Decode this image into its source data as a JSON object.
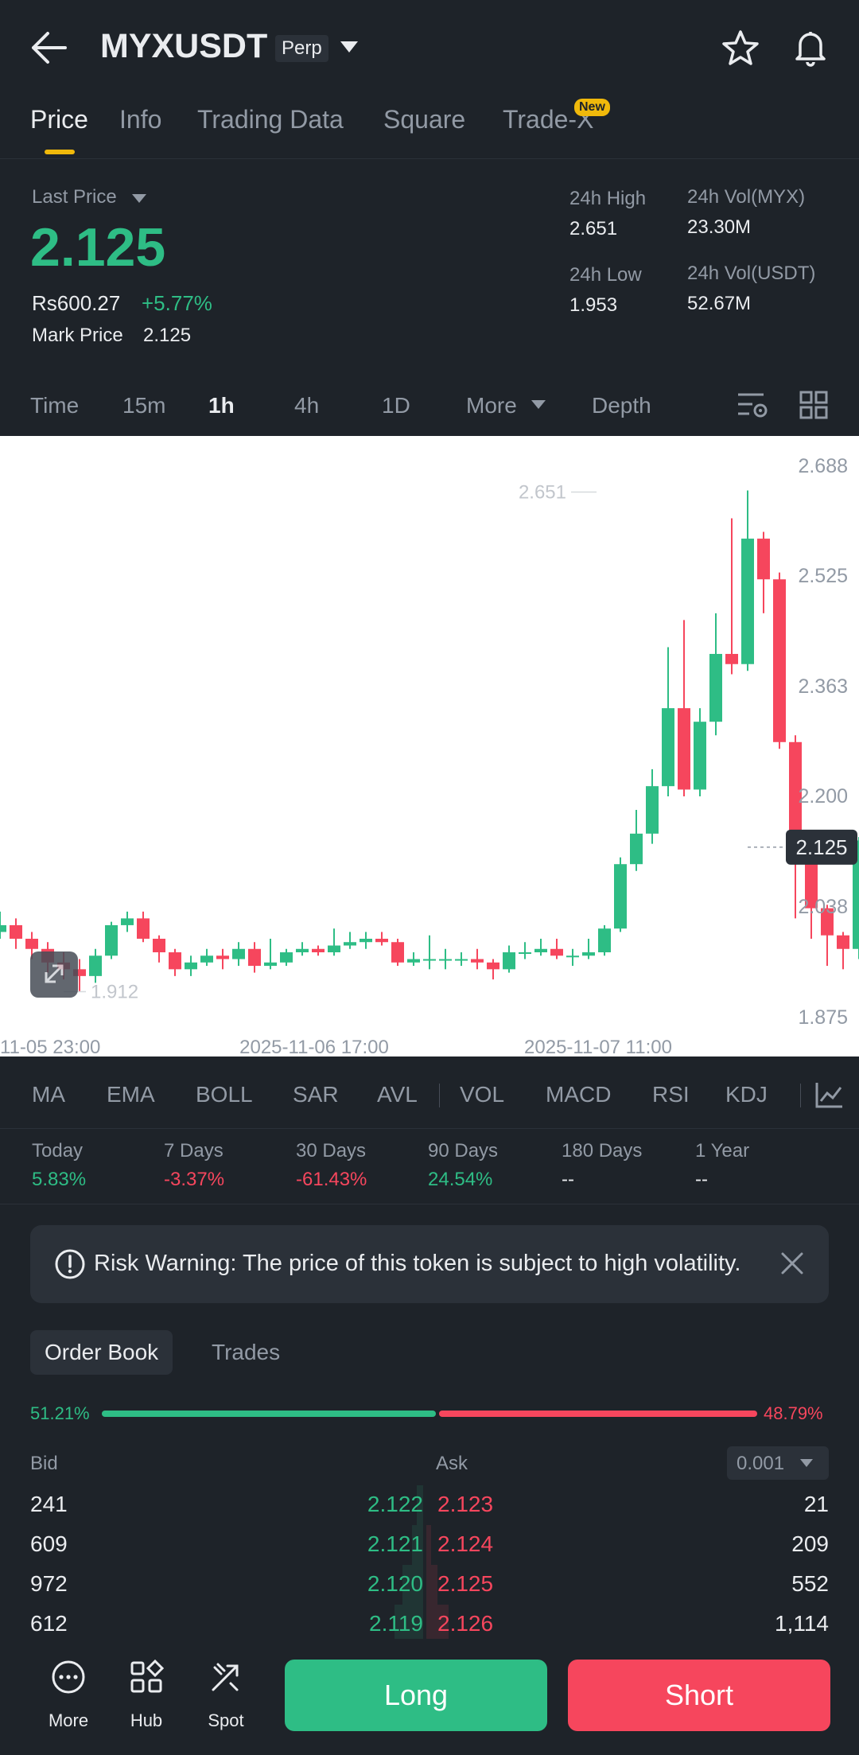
{
  "header": {
    "symbol": "MYXUSDT",
    "contract_type": "Perp",
    "icons": [
      "back-arrow-icon",
      "star-icon",
      "bell-icon"
    ]
  },
  "tabs": [
    {
      "label": "Price",
      "active": true
    },
    {
      "label": "Info",
      "active": false
    },
    {
      "label": "Trading Data",
      "active": false
    },
    {
      "label": "Square",
      "active": false
    },
    {
      "label": "Trade-X",
      "active": false,
      "badge": "New"
    }
  ],
  "ticker": {
    "last_price_label": "Last Price",
    "last_price": "2.125",
    "inr_price": "Rs600.27",
    "change_pct": "+5.77%",
    "mark_price_label": "Mark Price",
    "mark_price": "2.125",
    "high_label": "24h High",
    "high": "2.651",
    "low_label": "24h Low",
    "low": "1.953",
    "vol_base_label": "24h Vol(MYX)",
    "vol_base": "23.30M",
    "vol_quote_label": "24h Vol(USDT)",
    "vol_quote": "52.67M"
  },
  "intervals": [
    {
      "label": "Time",
      "active": false
    },
    {
      "label": "15m",
      "active": false
    },
    {
      "label": "1h",
      "active": true
    },
    {
      "label": "4h",
      "active": false
    },
    {
      "label": "1D",
      "active": false
    },
    {
      "label": "More",
      "active": false
    },
    {
      "label": "Depth",
      "active": false
    }
  ],
  "chart_data": {
    "type": "candlestick",
    "y_ticks": [
      "2.688",
      "2.525",
      "2.363",
      "2.200",
      "2.038",
      "1.875"
    ],
    "ylim": [
      1.875,
      2.688
    ],
    "x_ticks": [
      "11-05 23:00",
      "2025-11-06 17:00",
      "2025-11-07 11:00"
    ],
    "current_price_label": "2.125",
    "max_label": "2.651",
    "min_label": "1.912",
    "candles": [
      [
        2.0,
        2.01,
        2.03,
        1.99
      ],
      [
        2.01,
        1.99,
        2.02,
        1.975
      ],
      [
        1.99,
        1.975,
        2.0,
        1.96
      ],
      [
        1.975,
        1.955,
        1.985,
        1.94
      ],
      [
        1.955,
        1.945,
        1.97,
        1.93
      ],
      [
        1.945,
        1.935,
        1.96,
        1.912
      ],
      [
        1.935,
        1.965,
        1.975,
        1.925
      ],
      [
        1.965,
        2.01,
        2.015,
        1.96
      ],
      [
        2.01,
        2.02,
        2.03,
        2.0
      ],
      [
        2.02,
        1.99,
        2.03,
        1.985
      ],
      [
        1.99,
        1.97,
        1.995,
        1.955
      ],
      [
        1.97,
        1.945,
        1.975,
        1.935
      ],
      [
        1.945,
        1.955,
        1.965,
        1.935
      ],
      [
        1.955,
        1.965,
        1.975,
        1.95
      ],
      [
        1.965,
        1.96,
        1.975,
        1.945
      ],
      [
        1.96,
        1.975,
        1.985,
        1.95
      ],
      [
        1.975,
        1.95,
        1.985,
        1.94
      ],
      [
        1.95,
        1.955,
        1.99,
        1.945
      ],
      [
        1.955,
        1.97,
        1.975,
        1.95
      ],
      [
        1.97,
        1.975,
        1.985,
        1.965
      ],
      [
        1.975,
        1.97,
        1.98,
        1.965
      ],
      [
        1.97,
        1.98,
        2.005,
        1.965
      ],
      [
        1.98,
        1.985,
        2.0,
        1.975
      ],
      [
        1.985,
        1.99,
        2.0,
        1.975
      ],
      [
        1.99,
        1.985,
        2.0,
        1.98
      ],
      [
        1.985,
        1.955,
        1.99,
        1.95
      ],
      [
        1.955,
        1.96,
        1.97,
        1.95
      ],
      [
        1.96,
        1.96,
        1.995,
        1.945
      ],
      [
        1.96,
        1.96,
        1.975,
        1.945
      ],
      [
        1.96,
        1.96,
        1.97,
        1.95
      ],
      [
        1.96,
        1.955,
        1.975,
        1.945
      ],
      [
        1.955,
        1.945,
        1.96,
        1.93
      ],
      [
        1.945,
        1.97,
        1.98,
        1.94
      ],
      [
        1.97,
        1.97,
        1.985,
        1.96
      ],
      [
        1.97,
        1.975,
        1.99,
        1.965
      ],
      [
        1.975,
        1.965,
        1.99,
        1.96
      ],
      [
        1.965,
        1.965,
        1.975,
        1.95
      ],
      [
        1.965,
        1.97,
        1.99,
        1.96
      ],
      [
        1.97,
        2.005,
        2.01,
        1.965
      ],
      [
        2.005,
        2.1,
        2.11,
        2.0
      ],
      [
        2.1,
        2.145,
        2.18,
        2.09
      ],
      [
        2.145,
        2.215,
        2.24,
        2.13
      ],
      [
        2.215,
        2.33,
        2.42,
        2.2
      ],
      [
        2.33,
        2.21,
        2.46,
        2.2
      ],
      [
        2.21,
        2.31,
        2.33,
        2.2
      ],
      [
        2.31,
        2.41,
        2.47,
        2.29
      ],
      [
        2.41,
        2.395,
        2.61,
        2.38
      ],
      [
        2.395,
        2.58,
        2.651,
        2.385
      ],
      [
        2.58,
        2.52,
        2.59,
        2.47
      ],
      [
        2.52,
        2.28,
        2.53,
        2.27
      ],
      [
        2.28,
        2.1,
        2.29,
        2.02
      ],
      [
        2.1,
        2.035,
        2.11,
        1.99
      ],
      [
        2.035,
        1.995,
        2.04,
        1.95
      ],
      [
        1.995,
        1.975,
        2.0,
        1.945
      ],
      [
        1.975,
        2.135,
        2.14,
        1.96
      ],
      [
        2.135,
        2.105,
        2.14,
        1.98
      ],
      [
        2.105,
        2.125,
        2.155,
        2.08
      ]
    ]
  },
  "indicators": [
    "MA",
    "EMA",
    "BOLL",
    "SAR",
    "AVL",
    "VOL",
    "MACD",
    "RSI",
    "KDJ"
  ],
  "performance": [
    {
      "label": "Today",
      "value": "5.83%",
      "dir": "up"
    },
    {
      "label": "7 Days",
      "value": "-3.37%",
      "dir": "down"
    },
    {
      "label": "30 Days",
      "value": "-61.43%",
      "dir": "down"
    },
    {
      "label": "90 Days",
      "value": "24.54%",
      "dir": "up"
    },
    {
      "label": "180 Days",
      "value": "--",
      "dir": "flat"
    },
    {
      "label": "1 Year",
      "value": "--",
      "dir": "flat"
    }
  ],
  "risk_warning": "Risk Warning: The price of this token is subject to high volatility.",
  "order_book": {
    "tab_order_book": "Order Book",
    "tab_trades": "Trades",
    "bid_ratio": "51.21%",
    "ask_ratio": "48.79%",
    "bid_ratio_value": 0.5121,
    "bid_header": "Bid",
    "ask_header": "Ask",
    "precision": "0.001",
    "rows": [
      {
        "bid_qty": "241",
        "bid_price": "2.122",
        "ask_price": "2.123",
        "ask_qty": "21"
      },
      {
        "bid_qty": "609",
        "bid_price": "2.121",
        "ask_price": "2.124",
        "ask_qty": "209"
      },
      {
        "bid_qty": "972",
        "bid_price": "2.120",
        "ask_price": "2.125",
        "ask_qty": "552"
      },
      {
        "bid_qty": "612",
        "bid_price": "2.119",
        "ask_price": "2.126",
        "ask_qty": "1,114"
      }
    ]
  },
  "bottom_bar": {
    "more": "More",
    "hub": "Hub",
    "spot": "Spot",
    "long": "Long",
    "short": "Short"
  },
  "colors": {
    "up": "#2ebd85",
    "down": "#f6465d",
    "accent": "#f0b90b",
    "bg": "#1e2329"
  }
}
